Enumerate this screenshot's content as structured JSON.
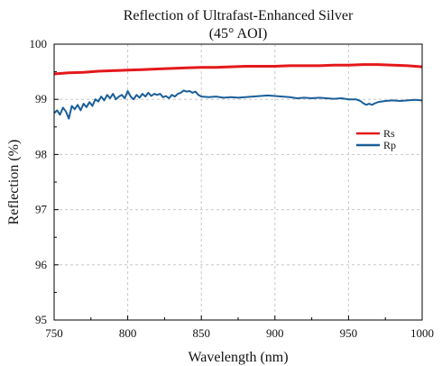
{
  "chart_data": {
    "type": "line",
    "title": "Reflection of Ultrafast-Enhanced Silver",
    "subtitle": "(45° AOI)",
    "xlabel": "Wavelength (nm)",
    "ylabel": "Reflection (%)",
    "xlim": [
      750,
      1000
    ],
    "ylim": [
      95,
      100
    ],
    "xticks": [
      "750",
      "800",
      "850",
      "900",
      "950",
      "1000"
    ],
    "yticks": [
      "95",
      "96",
      "97",
      "98",
      "99",
      "100"
    ],
    "grid": true,
    "legend_position": "right-middle",
    "series": [
      {
        "name": "Rs",
        "color": "#e3191c",
        "x": [
          750,
          760,
          770,
          780,
          790,
          800,
          810,
          820,
          830,
          840,
          850,
          860,
          870,
          880,
          890,
          900,
          910,
          920,
          930,
          940,
          950,
          960,
          970,
          980,
          990,
          1000
        ],
        "y": [
          99.46,
          99.48,
          99.49,
          99.51,
          99.52,
          99.53,
          99.54,
          99.55,
          99.56,
          99.57,
          99.58,
          99.58,
          99.59,
          99.6,
          99.6,
          99.6,
          99.61,
          99.61,
          99.61,
          99.62,
          99.62,
          99.63,
          99.63,
          99.62,
          99.61,
          99.59
        ]
      },
      {
        "name": "Rp",
        "color": "#1a5f99",
        "x": [
          750,
          752,
          754,
          756,
          758,
          760,
          762,
          764,
          766,
          768,
          770,
          772,
          774,
          776,
          778,
          780,
          782,
          784,
          786,
          788,
          790,
          792,
          794,
          796,
          798,
          800,
          802,
          804,
          806,
          808,
          810,
          812,
          814,
          816,
          818,
          820,
          822,
          824,
          826,
          828,
          830,
          832,
          834,
          836,
          838,
          840,
          842,
          844,
          846,
          848,
          850,
          855,
          860,
          865,
          870,
          875,
          880,
          885,
          890,
          895,
          900,
          905,
          910,
          915,
          920,
          925,
          930,
          935,
          940,
          945,
          950,
          955,
          958,
          960,
          962,
          964,
          966,
          968,
          970,
          975,
          980,
          985,
          990,
          995,
          1000
        ],
        "y": [
          98.75,
          98.8,
          98.72,
          98.85,
          98.78,
          98.65,
          98.88,
          98.82,
          98.9,
          98.8,
          98.92,
          98.86,
          98.95,
          98.88,
          99.0,
          98.96,
          99.05,
          98.98,
          99.08,
          99.02,
          99.1,
          99.0,
          99.05,
          99.08,
          99.02,
          99.15,
          99.05,
          99.0,
          99.08,
          99.03,
          99.1,
          99.05,
          99.12,
          99.06,
          99.1,
          99.08,
          99.1,
          99.04,
          99.06,
          99.02,
          99.08,
          99.05,
          99.1,
          99.12,
          99.16,
          99.14,
          99.15,
          99.12,
          99.14,
          99.08,
          99.05,
          99.04,
          99.05,
          99.03,
          99.04,
          99.03,
          99.04,
          99.05,
          99.06,
          99.07,
          99.06,
          99.05,
          99.04,
          99.02,
          99.03,
          99.02,
          99.03,
          99.02,
          99.01,
          99.02,
          99.0,
          99.0,
          98.97,
          98.93,
          98.9,
          98.92,
          98.9,
          98.93,
          98.95,
          98.97,
          98.98,
          98.97,
          98.98,
          98.99,
          98.98
        ]
      }
    ]
  }
}
